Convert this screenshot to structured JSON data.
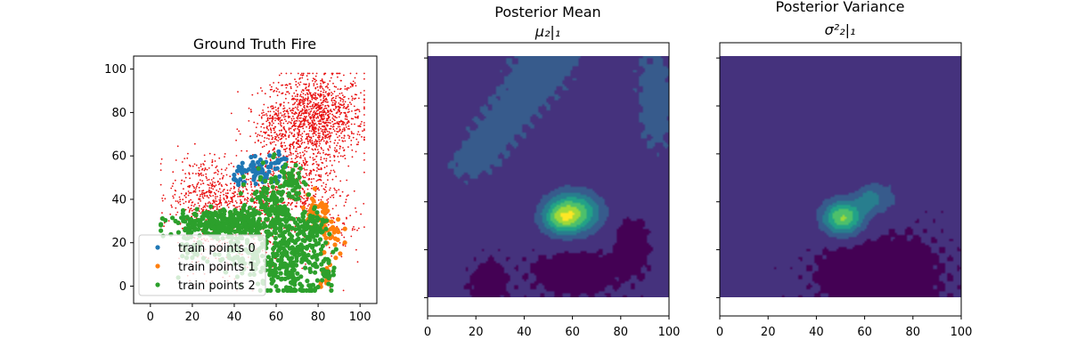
{
  "chart_data": [
    {
      "type": "scatter",
      "title": "Ground Truth Fire",
      "xlabel": "",
      "ylabel": "",
      "xlim": [
        -8,
        108
      ],
      "ylim": [
        -8,
        106
      ],
      "xticks": [
        0,
        20,
        40,
        60,
        80,
        100
      ],
      "yticks": [
        0,
        20,
        40,
        60,
        80,
        100
      ],
      "grid": false,
      "legend_position": "lower-left",
      "background_points": {
        "color": "#e81010",
        "clusters": [
          {
            "cx": 80,
            "cy": 78,
            "sx": 11,
            "sy": 10,
            "n": 1100
          },
          {
            "cx": 62,
            "cy": 72,
            "sx": 8,
            "sy": 8,
            "n": 250
          },
          {
            "cx": 25,
            "cy": 42,
            "sx": 8,
            "sy": 9,
            "n": 380
          },
          {
            "cx": 48,
            "cy": 40,
            "sx": 9,
            "sy": 9,
            "n": 320
          },
          {
            "cx": 72,
            "cy": 48,
            "sx": 9,
            "sy": 10,
            "n": 380
          },
          {
            "cx": 40,
            "cy": 22,
            "sx": 14,
            "sy": 10,
            "n": 300
          },
          {
            "cx": 90,
            "cy": 25,
            "sx": 6,
            "sy": 10,
            "n": 60
          }
        ]
      },
      "series": [
        {
          "name": "train points 0",
          "color": "#1f77b4",
          "clusters": [
            {
              "cx": 52,
              "cy": 52,
              "sx": 6,
              "sy": 3,
              "n": 70
            },
            {
              "cx": 62,
              "cy": 57,
              "sx": 2,
              "sy": 2,
              "n": 15
            }
          ]
        },
        {
          "name": "train points 1",
          "color": "#ff7f0e",
          "clusters": [
            {
              "cx": 80,
              "cy": 32,
              "sx": 4,
              "sy": 5,
              "n": 45
            },
            {
              "cx": 86,
              "cy": 24,
              "sx": 3,
              "sy": 6,
              "n": 30
            },
            {
              "cx": 83,
              "cy": 4,
              "sx": 2,
              "sy": 3,
              "n": 12
            }
          ]
        },
        {
          "name": "train points 2",
          "color": "#2ca02c",
          "clusters": [
            {
              "cx": 35,
              "cy": 29,
              "sx": 12,
              "sy": 3,
              "n": 320
            },
            {
              "cx": 20,
              "cy": 20,
              "sx": 3,
              "sy": 6,
              "n": 40
            },
            {
              "cx": 58,
              "cy": 36,
              "sx": 6,
              "sy": 9,
              "n": 150
            },
            {
              "cx": 68,
              "cy": 12,
              "sx": 8,
              "sy": 10,
              "n": 280
            },
            {
              "cx": 48,
              "cy": 14,
              "sx": 8,
              "sy": 5,
              "n": 90
            },
            {
              "cx": 78,
              "cy": 28,
              "sx": 3,
              "sy": 6,
              "n": 50
            },
            {
              "cx": 85,
              "cy": 6,
              "sx": 2,
              "sy": 3,
              "n": 15
            },
            {
              "cx": 67,
              "cy": 48,
              "sx": 3,
              "sy": 4,
              "n": 40
            }
          ]
        }
      ]
    },
    {
      "type": "heatmap",
      "title": "Posterior Mean",
      "subtitle": "μ₂|₁",
      "xlim": [
        0,
        100
      ],
      "ylim": [
        -8,
        106
      ],
      "xticks": [
        0,
        20,
        40,
        60,
        80,
        100
      ],
      "ytick_labels_shown": false,
      "colormap": "viridis",
      "levels": 8,
      "surface": {
        "background": 0.14,
        "components": [
          {
            "cx": 25,
            "cy": 100,
            "sx": 15,
            "sy": 18,
            "amp": 0.14,
            "kind": "band-left"
          },
          {
            "cx": 95,
            "cy": 80,
            "sx": 10,
            "sy": 25,
            "amp": 0.14
          },
          {
            "cx": 60,
            "cy": 35,
            "sx": 8,
            "sy": 6,
            "amp": 0.62
          },
          {
            "cx": 55,
            "cy": 32,
            "sx": 5,
            "sy": 4,
            "amp": 0.25
          },
          {
            "cx": 85,
            "cy": 22,
            "sx": 4,
            "sy": 7,
            "amp": -0.12
          },
          {
            "cx": 62,
            "cy": 10,
            "sx": 10,
            "sy": 5,
            "amp": -0.1
          },
          {
            "cx": 25,
            "cy": 5,
            "sx": 4,
            "sy": 5,
            "amp": -0.1
          }
        ]
      }
    },
    {
      "type": "heatmap",
      "title": "Posterior Variance",
      "subtitle": "σ²₂|₁",
      "xlim": [
        0,
        100
      ],
      "ylim": [
        -8,
        106
      ],
      "xticks": [
        0,
        20,
        40,
        60,
        80,
        100
      ],
      "ytick_labels_shown": false,
      "colormap": "viridis",
      "levels": 8,
      "surface": {
        "background": 0.14,
        "components": [
          {
            "cx": 51,
            "cy": 33,
            "sx": 6,
            "sy": 5,
            "amp": 0.62
          },
          {
            "cx": 62,
            "cy": 41,
            "sx": 4,
            "sy": 4,
            "amp": 0.25
          },
          {
            "cx": 70,
            "cy": 42,
            "sx": 5,
            "sy": 6,
            "amp": 0.12
          },
          {
            "cx": 70,
            "cy": 8,
            "sx": 12,
            "sy": 10,
            "amp": -0.1
          },
          {
            "cx": 55,
            "cy": 10,
            "sx": 8,
            "sy": 6,
            "amp": -0.1
          }
        ]
      }
    }
  ]
}
